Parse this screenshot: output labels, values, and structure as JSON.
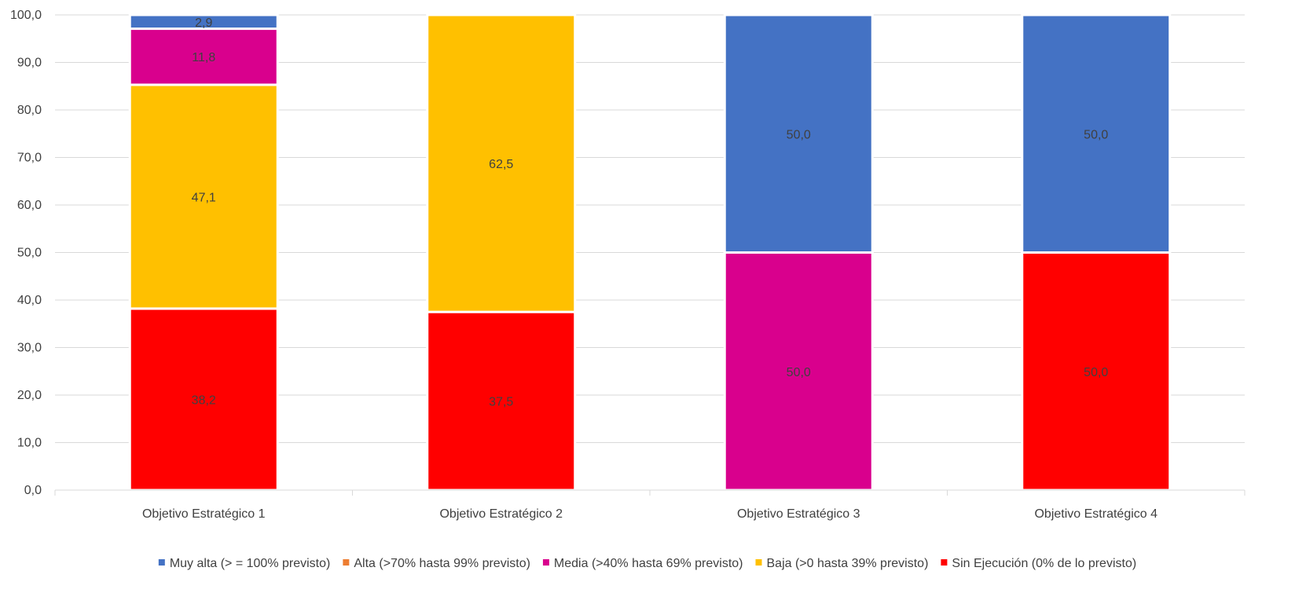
{
  "chart_data": {
    "type": "bar",
    "stacked": true,
    "categories": [
      "Objetivo Estratégico 1",
      "Objetivo Estratégico 2",
      "Objetivo Estratégico 3",
      "Objetivo Estratégico 4"
    ],
    "series": [
      {
        "name": "Sin Ejecución (0% de lo previsto)",
        "color": "#FF0000",
        "values": [
          38.2,
          37.5,
          0,
          50.0
        ],
        "labels": [
          "38,2",
          "37,5",
          "",
          "50,0"
        ]
      },
      {
        "name": "Baja (>0  hasta 39% previsto)",
        "color": "#FFC000",
        "values": [
          47.1,
          62.5,
          0,
          0
        ],
        "labels": [
          "47,1",
          "62,5",
          "",
          ""
        ]
      },
      {
        "name": "Media (>40% hasta 69% previsto)",
        "color": "#D9008D",
        "values": [
          11.8,
          0,
          50.0,
          0
        ],
        "labels": [
          "11,8",
          "",
          "50,0",
          ""
        ]
      },
      {
        "name": "Alta (>70% hasta 99% previsto)",
        "color": "#ED7D31",
        "values": [
          0,
          0,
          0,
          0
        ],
        "labels": [
          "",
          "",
          "",
          ""
        ]
      },
      {
        "name": "Muy alta (> = 100% previsto)",
        "color": "#4472C4",
        "values": [
          2.9,
          0,
          50.0,
          50.0
        ],
        "labels": [
          "2,9",
          "",
          "50,0",
          "50,0"
        ]
      }
    ],
    "legend_order": [
      4,
      3,
      2,
      1,
      0
    ],
    "ylim": [
      0,
      100
    ],
    "yticks": [
      "0,0",
      "10,0",
      "20,0",
      "30,0",
      "40,0",
      "50,0",
      "60,0",
      "70,0",
      "80,0",
      "90,0",
      "100,0"
    ],
    "title": "",
    "xlabel": "",
    "ylabel": "",
    "grid": true,
    "legend_position": "bottom"
  }
}
